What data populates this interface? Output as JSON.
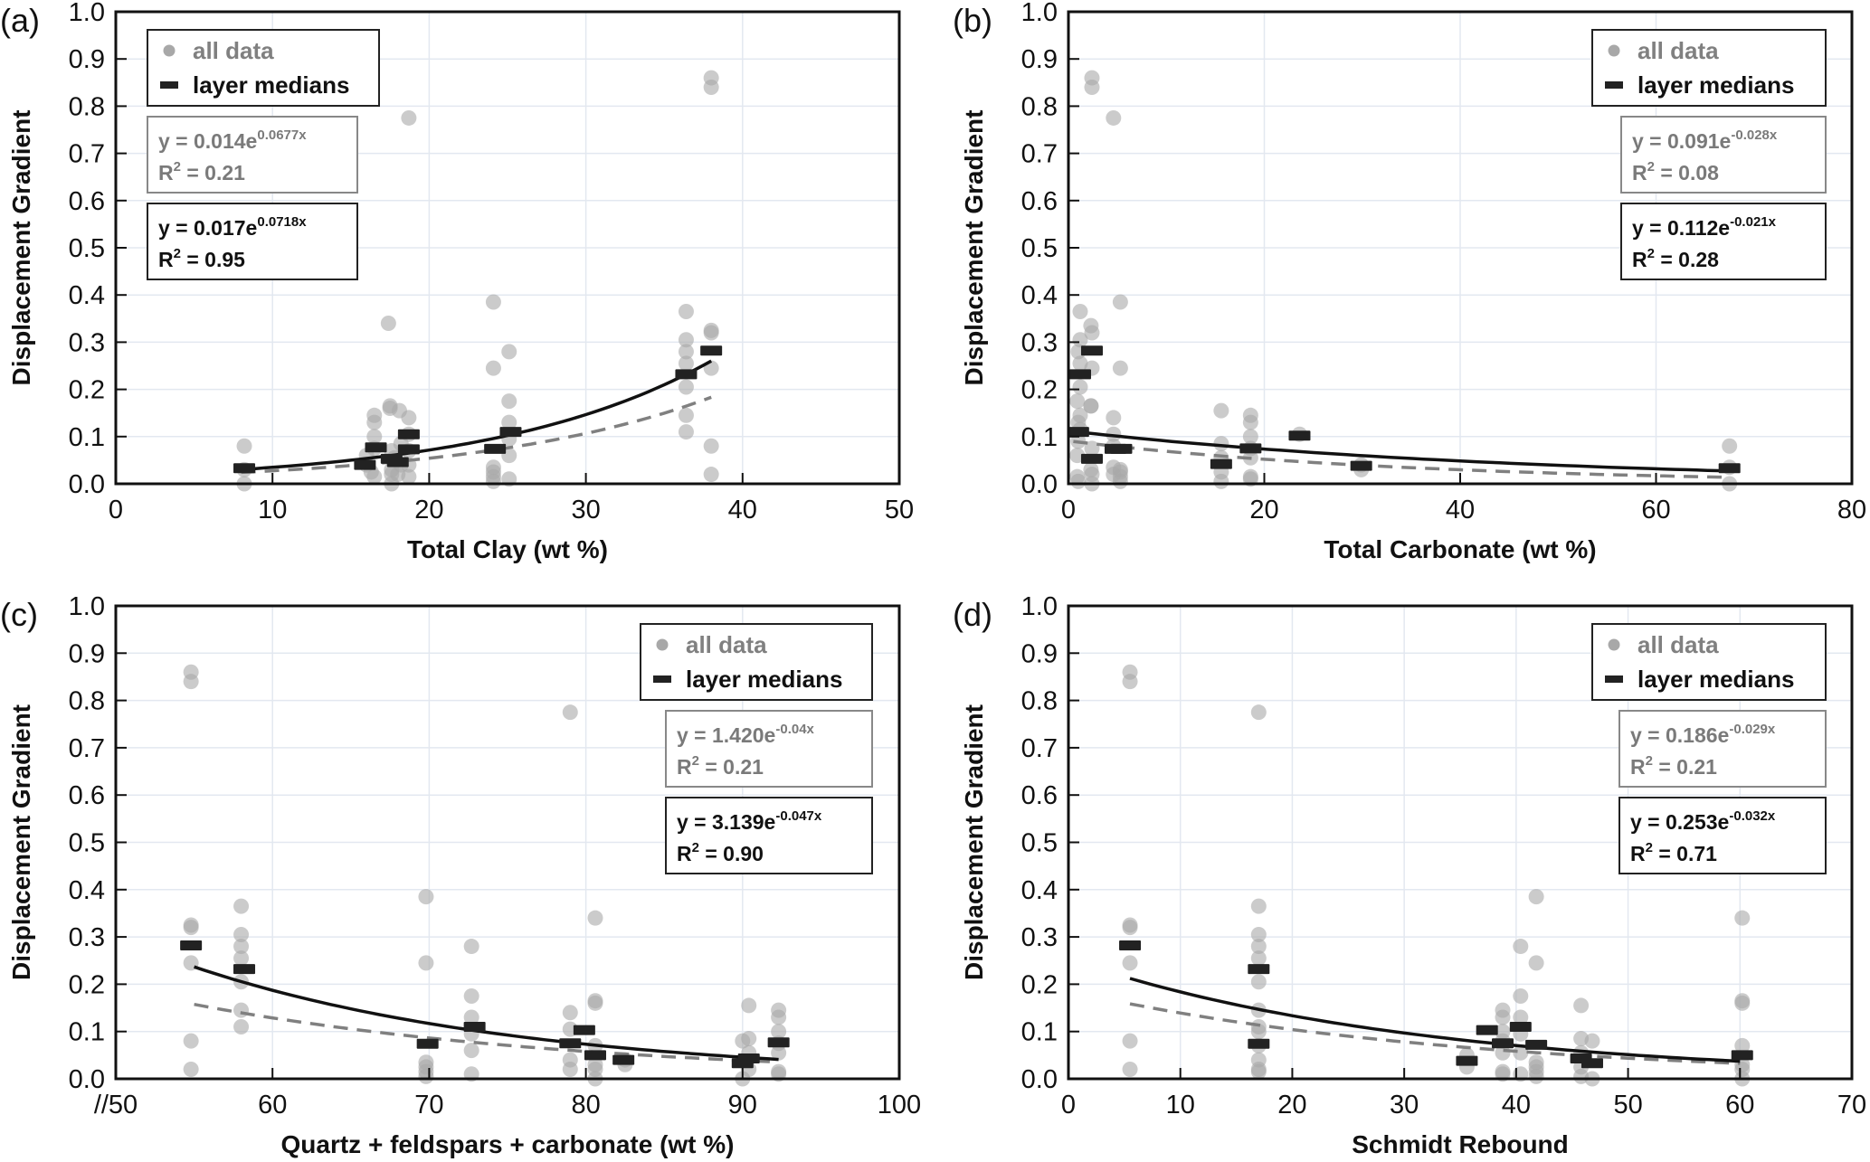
{
  "figure": {
    "y_axis_label": "Displacement Gradient",
    "legend": {
      "all_data_label": "all data",
      "medians_label": "layer medians"
    },
    "colors": {
      "all_data_dot": "#a8a8a8",
      "median_marker": "#222222",
      "fit_all_line": "#808080",
      "fit_median_line": "#111111",
      "grid": "#e3e8f0",
      "fit_all_text": "#7a7a7a",
      "fit_median_text": "#111111"
    }
  },
  "chart_data": [
    {
      "type": "scatter",
      "panel_label": "(a)",
      "title": "",
      "xlabel": "Total Clay (wt %)",
      "ylabel": "Displacement Gradient",
      "xlim": [
        0,
        50
      ],
      "ylim": [
        0,
        1.0
      ],
      "xticks": [
        0,
        10,
        20,
        30,
        40,
        50
      ],
      "xtick_labels": [
        "0",
        "10",
        "20",
        "30",
        "40",
        "50"
      ],
      "yticks": [
        0,
        0.1,
        0.2,
        0.3,
        0.4,
        0.5,
        0.6,
        0.7,
        0.8,
        0.9,
        1.0
      ],
      "ytick_labels": [
        "0.0",
        "0.1",
        "0.2",
        "0.3",
        "0.4",
        "0.5",
        "0.6",
        "0.7",
        "0.8",
        "0.9",
        "1.0"
      ],
      "grid": true,
      "legend_position": "top-left",
      "fit_all": {
        "a": 0.014,
        "b": 0.0677,
        "equation": "y = 0.014e",
        "exponent": "0.0677x",
        "r2_label": "R",
        "r2_value": " = 0.21",
        "x_range": [
          8,
          38
        ]
      },
      "fit_medians": {
        "a": 0.017,
        "b": 0.0718,
        "equation": "y = 0.017e",
        "exponent": "0.0718x",
        "r2_label": "R",
        "r2_value": " = 0.95",
        "x_range": [
          8,
          38
        ]
      },
      "all_data": [
        [
          8.2,
          0.08
        ],
        [
          8.2,
          0.03
        ],
        [
          8.2,
          0.0
        ],
        [
          16.0,
          0.04
        ],
        [
          16.5,
          0.145
        ],
        [
          16.5,
          0.13
        ],
        [
          16.5,
          0.1
        ],
        [
          16.5,
          0.075
        ],
        [
          16.5,
          0.015
        ],
        [
          16.0,
          0.06
        ],
        [
          16.3,
          0.025
        ],
        [
          17.4,
          0.34
        ],
        [
          17.5,
          0.165
        ],
        [
          17.5,
          0.16
        ],
        [
          17.6,
          0.07
        ],
        [
          17.6,
          0.03
        ],
        [
          17.6,
          0.02
        ],
        [
          17.6,
          0.0
        ],
        [
          17.8,
          0.055
        ],
        [
          18.1,
          0.155
        ],
        [
          18.2,
          0.085
        ],
        [
          18.2,
          0.04
        ],
        [
          18.0,
          0.02
        ],
        [
          18.7,
          0.14
        ],
        [
          18.7,
          0.105
        ],
        [
          18.7,
          0.07
        ],
        [
          18.7,
          0.04
        ],
        [
          18.7,
          0.015
        ],
        [
          18.7,
          0.775
        ],
        [
          24.1,
          0.385
        ],
        [
          24.1,
          0.245
        ],
        [
          24.1,
          0.035
        ],
        [
          24.1,
          0.025
        ],
        [
          24.1,
          0.015
        ],
        [
          24.1,
          0.005
        ],
        [
          25.1,
          0.28
        ],
        [
          25.1,
          0.175
        ],
        [
          25.1,
          0.13
        ],
        [
          25.1,
          0.095
        ],
        [
          25.1,
          0.06
        ],
        [
          25.1,
          0.01
        ],
        [
          36.4,
          0.365
        ],
        [
          36.4,
          0.305
        ],
        [
          36.4,
          0.28
        ],
        [
          36.4,
          0.255
        ],
        [
          36.4,
          0.205
        ],
        [
          36.4,
          0.145
        ],
        [
          36.4,
          0.11
        ],
        [
          38.0,
          0.86
        ],
        [
          38.0,
          0.84
        ],
        [
          38.0,
          0.325
        ],
        [
          38.0,
          0.32
        ],
        [
          38.0,
          0.245
        ],
        [
          38.0,
          0.08
        ],
        [
          38.0,
          0.02
        ]
      ],
      "medians": [
        [
          8.2,
          0.033
        ],
        [
          15.9,
          0.04
        ],
        [
          16.6,
          0.077
        ],
        [
          17.6,
          0.053
        ],
        [
          18.0,
          0.046
        ],
        [
          18.7,
          0.105
        ],
        [
          18.7,
          0.073
        ],
        [
          24.2,
          0.074
        ],
        [
          25.2,
          0.11
        ],
        [
          36.4,
          0.232
        ],
        [
          38.0,
          0.282
        ]
      ]
    },
    {
      "type": "scatter",
      "panel_label": "(b)",
      "title": "",
      "xlabel": "Total Carbonate (wt %)",
      "ylabel": "Displacement Gradient",
      "xlim": [
        0,
        80
      ],
      "ylim": [
        0,
        1.0
      ],
      "xticks": [
        0,
        20,
        40,
        60,
        80
      ],
      "xtick_labels": [
        "0",
        "20",
        "40",
        "60",
        "80"
      ],
      "yticks": [
        0,
        0.1,
        0.2,
        0.3,
        0.4,
        0.5,
        0.6,
        0.7,
        0.8,
        0.9,
        1.0
      ],
      "ytick_labels": [
        "0.0",
        "0.1",
        "0.2",
        "0.3",
        "0.4",
        "0.5",
        "0.6",
        "0.7",
        "0.8",
        "0.9",
        "1.0"
      ],
      "grid": true,
      "legend_position": "top-right",
      "fit_all": {
        "a": 0.091,
        "b": -0.028,
        "equation": "y = 0.091e",
        "exponent": "-0.028x",
        "r2_label": "R",
        "r2_value": " = 0.08",
        "x_range": [
          0.5,
          67.5
        ]
      },
      "fit_medians": {
        "a": 0.112,
        "b": -0.021,
        "equation": "y = 0.112e",
        "exponent": "-0.021x",
        "r2_label": "R",
        "r2_value": " = 0.28",
        "x_range": [
          0.5,
          67.5
        ]
      },
      "all_data": [
        [
          1.2,
          0.365
        ],
        [
          1.2,
          0.305
        ],
        [
          1.0,
          0.28
        ],
        [
          1.2,
          0.255
        ],
        [
          1.2,
          0.205
        ],
        [
          0.9,
          0.175
        ],
        [
          1.2,
          0.145
        ],
        [
          1.0,
          0.13
        ],
        [
          1.2,
          0.115
        ],
        [
          1.0,
          0.09
        ],
        [
          0.9,
          0.06
        ],
        [
          0.9,
          0.015
        ],
        [
          1.0,
          0.005
        ],
        [
          2.4,
          0.86
        ],
        [
          2.4,
          0.84
        ],
        [
          2.3,
          0.335
        ],
        [
          2.4,
          0.32
        ],
        [
          2.4,
          0.245
        ],
        [
          2.3,
          0.165
        ],
        [
          2.3,
          0.165
        ],
        [
          2.4,
          0.075
        ],
        [
          2.3,
          0.03
        ],
        [
          2.4,
          0.02
        ],
        [
          2.4,
          0.0
        ],
        [
          4.6,
          0.775
        ],
        [
          4.6,
          0.14
        ],
        [
          4.6,
          0.105
        ],
        [
          4.6,
          0.08
        ],
        [
          4.6,
          0.035
        ],
        [
          4.6,
          0.02
        ],
        [
          5.3,
          0.385
        ],
        [
          5.3,
          0.245
        ],
        [
          5.3,
          0.03
        ],
        [
          5.3,
          0.025
        ],
        [
          5.3,
          0.015
        ],
        [
          5.3,
          0.005
        ],
        [
          15.6,
          0.155
        ],
        [
          15.6,
          0.085
        ],
        [
          15.6,
          0.055
        ],
        [
          15.6,
          0.025
        ],
        [
          15.6,
          0.005
        ],
        [
          18.6,
          0.145
        ],
        [
          18.6,
          0.13
        ],
        [
          18.6,
          0.1
        ],
        [
          18.6,
          0.075
        ],
        [
          18.6,
          0.055
        ],
        [
          18.6,
          0.015
        ],
        [
          18.6,
          0.01
        ],
        [
          23.6,
          0.105
        ],
        [
          29.9,
          0.04
        ],
        [
          29.9,
          0.03
        ],
        [
          67.5,
          0.08
        ],
        [
          67.5,
          0.035
        ],
        [
          67.5,
          0.0
        ]
      ],
      "medians": [
        [
          1.2,
          0.232
        ],
        [
          1.0,
          0.11
        ],
        [
          2.4,
          0.282
        ],
        [
          2.4,
          0.053
        ],
        [
          4.8,
          0.074
        ],
        [
          5.4,
          0.074
        ],
        [
          15.6,
          0.042
        ],
        [
          18.6,
          0.075
        ],
        [
          23.6,
          0.102
        ],
        [
          29.9,
          0.038
        ],
        [
          67.5,
          0.033
        ]
      ]
    },
    {
      "type": "scatter",
      "panel_label": "(c)",
      "title": "",
      "xlabel": "Quartz + feldspars + carbonate (wt %)",
      "ylabel": "Displacement Gradient",
      "xlim": [
        50,
        100
      ],
      "ylim": [
        0,
        1.0
      ],
      "axis_break": true,
      "xticks": [
        50,
        60,
        70,
        80,
        90,
        100
      ],
      "xtick_labels": [
        "//50",
        "60",
        "70",
        "80",
        "90",
        "100"
      ],
      "yticks": [
        0,
        0.1,
        0.2,
        0.3,
        0.4,
        0.5,
        0.6,
        0.7,
        0.8,
        0.9,
        1.0
      ],
      "ytick_labels": [
        "0.0",
        "0.1",
        "0.2",
        "0.3",
        "0.4",
        "0.5",
        "0.6",
        "0.7",
        "0.8",
        "0.9",
        "1.0"
      ],
      "grid": true,
      "legend_position": "top-right",
      "fit_all": {
        "a": 1.42,
        "b": -0.04,
        "equation": "y = 1.420e",
        "exponent": "-0.04x",
        "r2_label": "R",
        "r2_value": " = 0.21",
        "x_range": [
          55,
          92.3
        ]
      },
      "fit_medians": {
        "a": 3.139,
        "b": -0.047,
        "equation": "y = 3.139e",
        "exponent": "-0.047x",
        "r2_label": "R",
        "r2_value": " = 0.90",
        "x_range": [
          55,
          92.3
        ]
      },
      "all_data": [
        [
          54.8,
          0.86
        ],
        [
          54.8,
          0.84
        ],
        [
          54.8,
          0.325
        ],
        [
          54.8,
          0.32
        ],
        [
          54.8,
          0.245
        ],
        [
          54.8,
          0.08
        ],
        [
          54.8,
          0.02
        ],
        [
          58.0,
          0.365
        ],
        [
          58.0,
          0.305
        ],
        [
          58.0,
          0.28
        ],
        [
          58.0,
          0.255
        ],
        [
          58.0,
          0.205
        ],
        [
          58.0,
          0.145
        ],
        [
          58.0,
          0.11
        ],
        [
          69.8,
          0.385
        ],
        [
          69.8,
          0.245
        ],
        [
          69.8,
          0.035
        ],
        [
          69.8,
          0.025
        ],
        [
          69.8,
          0.015
        ],
        [
          69.8,
          0.005
        ],
        [
          72.7,
          0.28
        ],
        [
          72.7,
          0.175
        ],
        [
          72.7,
          0.13
        ],
        [
          72.7,
          0.095
        ],
        [
          72.7,
          0.06
        ],
        [
          72.7,
          0.01
        ],
        [
          79.0,
          0.775
        ],
        [
          79.0,
          0.14
        ],
        [
          79.0,
          0.105
        ],
        [
          79.0,
          0.04
        ],
        [
          79.0,
          0.02
        ],
        [
          80.6,
          0.34
        ],
        [
          80.6,
          0.165
        ],
        [
          80.6,
          0.16
        ],
        [
          80.6,
          0.07
        ],
        [
          80.6,
          0.03
        ],
        [
          80.6,
          0.02
        ],
        [
          80.6,
          0.0
        ],
        [
          82.5,
          0.04
        ],
        [
          82.5,
          0.03
        ],
        [
          90.0,
          0.08
        ],
        [
          90.0,
          0.0
        ],
        [
          90.4,
          0.155
        ],
        [
          90.4,
          0.085
        ],
        [
          90.4,
          0.055
        ],
        [
          90.4,
          0.02
        ],
        [
          92.3,
          0.145
        ],
        [
          92.3,
          0.13
        ],
        [
          92.3,
          0.1
        ],
        [
          92.3,
          0.075
        ],
        [
          92.3,
          0.055
        ],
        [
          92.3,
          0.015
        ],
        [
          92.3,
          0.01
        ]
      ],
      "medians": [
        [
          54.8,
          0.282
        ],
        [
          58.2,
          0.232
        ],
        [
          69.9,
          0.074
        ],
        [
          72.9,
          0.11
        ],
        [
          79.0,
          0.075
        ],
        [
          79.9,
          0.103
        ],
        [
          80.6,
          0.05
        ],
        [
          82.4,
          0.04
        ],
        [
          90.0,
          0.033
        ],
        [
          90.4,
          0.043
        ],
        [
          92.3,
          0.077
        ]
      ]
    },
    {
      "type": "scatter",
      "panel_label": "(d)",
      "title": "",
      "xlabel": "Schmidt Rebound",
      "ylabel": "Displacement Gradient",
      "xlim": [
        0,
        70
      ],
      "ylim": [
        0,
        1.0
      ],
      "xticks": [
        0,
        10,
        20,
        30,
        40,
        50,
        60,
        70
      ],
      "xtick_labels": [
        "0",
        "10",
        "20",
        "30",
        "40",
        "50",
        "60",
        "70"
      ],
      "yticks": [
        0,
        0.1,
        0.2,
        0.3,
        0.4,
        0.5,
        0.6,
        0.7,
        0.8,
        0.9,
        1.0
      ],
      "ytick_labels": [
        "0.0",
        "0.1",
        "0.2",
        "0.3",
        "0.4",
        "0.5",
        "0.6",
        "0.7",
        "0.8",
        "0.9",
        "1.0"
      ],
      "grid": true,
      "legend_position": "top-right",
      "fit_all": {
        "a": 0.186,
        "b": -0.029,
        "equation": "y = 0.186e",
        "exponent": "-0.029x",
        "r2_label": "R",
        "r2_value": " = 0.21",
        "x_range": [
          5.5,
          60
        ]
      },
      "fit_medians": {
        "a": 0.253,
        "b": -0.032,
        "equation": "y = 0.253e",
        "exponent": "-0.032x",
        "r2_label": "R",
        "r2_value": " = 0.71",
        "x_range": [
          5.5,
          60
        ]
      },
      "all_data": [
        [
          5.5,
          0.86
        ],
        [
          5.5,
          0.84
        ],
        [
          5.5,
          0.325
        ],
        [
          5.5,
          0.32
        ],
        [
          5.5,
          0.245
        ],
        [
          5.5,
          0.08
        ],
        [
          5.5,
          0.02
        ],
        [
          17.0,
          0.775
        ],
        [
          17.0,
          0.365
        ],
        [
          17.0,
          0.305
        ],
        [
          17.0,
          0.28
        ],
        [
          17.0,
          0.255
        ],
        [
          17.0,
          0.205
        ],
        [
          17.0,
          0.145
        ],
        [
          17.0,
          0.11
        ],
        [
          17.0,
          0.1
        ],
        [
          17.0,
          0.07
        ],
        [
          17.0,
          0.04
        ],
        [
          17.0,
          0.02
        ],
        [
          17.0,
          0.015
        ],
        [
          35.6,
          0.05
        ],
        [
          35.6,
          0.025
        ],
        [
          38.8,
          0.145
        ],
        [
          38.8,
          0.13
        ],
        [
          38.8,
          0.1
        ],
        [
          38.8,
          0.08
        ],
        [
          38.8,
          0.055
        ],
        [
          38.8,
          0.015
        ],
        [
          38.8,
          0.01
        ],
        [
          40.4,
          0.28
        ],
        [
          40.4,
          0.175
        ],
        [
          40.4,
          0.13
        ],
        [
          40.4,
          0.095
        ],
        [
          40.4,
          0.055
        ],
        [
          40.4,
          0.01
        ],
        [
          41.8,
          0.385
        ],
        [
          41.8,
          0.245
        ],
        [
          41.8,
          0.035
        ],
        [
          41.8,
          0.025
        ],
        [
          41.8,
          0.015
        ],
        [
          41.8,
          0.005
        ],
        [
          45.8,
          0.155
        ],
        [
          45.8,
          0.085
        ],
        [
          45.8,
          0.055
        ],
        [
          45.8,
          0.025
        ],
        [
          45.8,
          0.005
        ],
        [
          46.8,
          0.08
        ],
        [
          46.8,
          0.0
        ],
        [
          60.2,
          0.34
        ],
        [
          60.2,
          0.165
        ],
        [
          60.2,
          0.16
        ],
        [
          60.2,
          0.07
        ],
        [
          60.2,
          0.03
        ],
        [
          60.2,
          0.02
        ],
        [
          60.2,
          0.0
        ]
      ],
      "medians": [
        [
          5.5,
          0.282
        ],
        [
          17.0,
          0.232
        ],
        [
          17.0,
          0.074
        ],
        [
          35.6,
          0.038
        ],
        [
          37.4,
          0.103
        ],
        [
          38.8,
          0.075
        ],
        [
          40.4,
          0.11
        ],
        [
          41.8,
          0.072
        ],
        [
          45.8,
          0.043
        ],
        [
          46.8,
          0.033
        ],
        [
          60.2,
          0.05
        ]
      ]
    }
  ]
}
